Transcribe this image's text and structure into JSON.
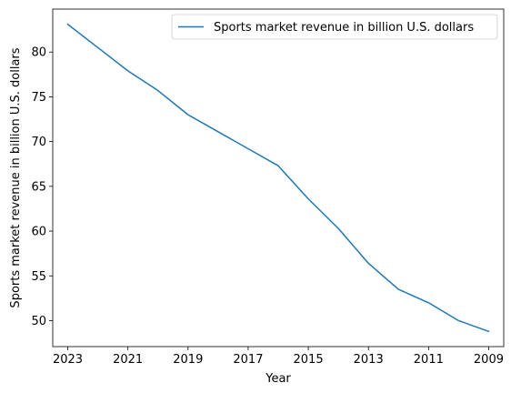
{
  "chart_data": {
    "type": "line",
    "x": [
      2023,
      2022,
      2021,
      2020,
      2019,
      2018,
      2017,
      2016,
      2015,
      2014,
      2013,
      2012,
      2011,
      2010,
      2009
    ],
    "series": [
      {
        "name": "Sports market revenue in billion U.S. dollars",
        "values": [
          83.1,
          80.5,
          77.9,
          75.7,
          73.0,
          71.1,
          69.2,
          67.3,
          63.6,
          60.3,
          56.4,
          53.5,
          52.0,
          50.0,
          48.8
        ],
        "color": "#1f77b4"
      }
    ],
    "xlabel": "Year",
    "ylabel": "Sports market revenue in billion U.S. dollars",
    "xlim": [
      2023.5,
      2008.5
    ],
    "ylim": [
      47.1,
      84.8
    ],
    "xticks": [
      2023,
      2021,
      2019,
      2017,
      2015,
      2013,
      2011,
      2009
    ],
    "yticks": [
      50,
      55,
      60,
      65,
      70,
      75,
      80
    ],
    "x_reversed": true,
    "grid": false,
    "legend_position": "top-right"
  }
}
